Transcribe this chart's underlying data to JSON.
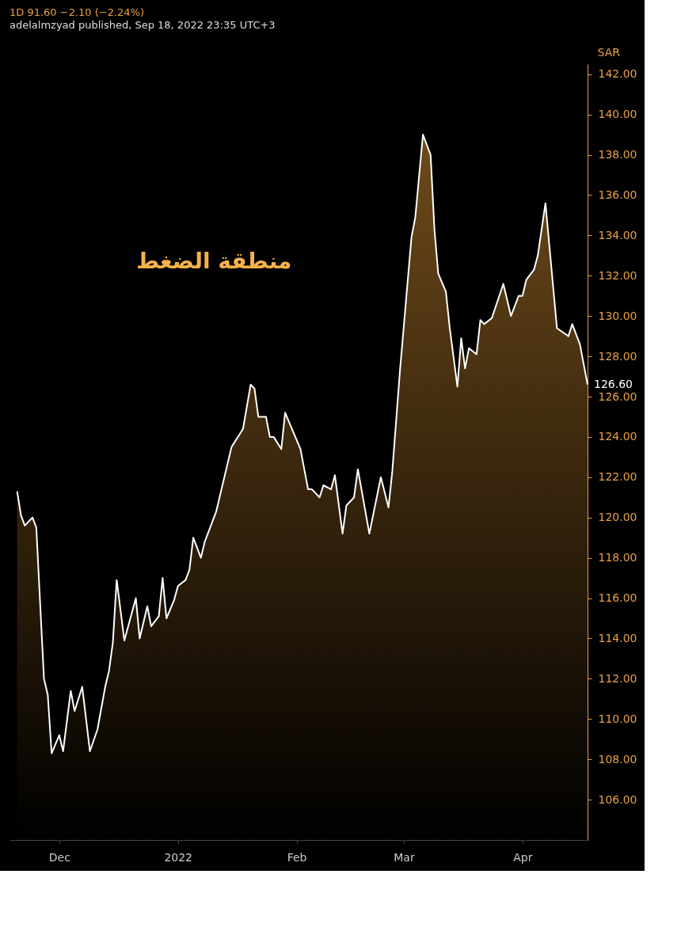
{
  "chart_data": {
    "type": "area",
    "title": "1D  91.60  −2.10 (−2.24%)",
    "subtitle": "adelalmzyad published, Sep 18, 2022 23:35 UTC+3",
    "ylabel": "SAR",
    "annotations": [
      "منطقة الضغط",
      {
        "text": "126.60",
        "x": "2022-04-18",
        "y": 126.6
      }
    ],
    "x": [
      "2021-11-20",
      "2021-11-21",
      "2021-11-22",
      "2021-11-24",
      "2021-11-25",
      "2021-11-27",
      "2021-11-28",
      "2021-11-29",
      "2021-12-01",
      "2021-12-02",
      "2021-12-04",
      "2021-12-05",
      "2021-12-07",
      "2021-12-09",
      "2021-12-11",
      "2021-12-13",
      "2021-12-14",
      "2021-12-15",
      "2021-12-16",
      "2021-12-18",
      "2021-12-21",
      "2021-12-22",
      "2021-12-24",
      "2021-12-25",
      "2021-12-27",
      "2021-12-28",
      "2021-12-29",
      "2021-12-31",
      "2022-01-01",
      "2022-01-03",
      "2022-01-04",
      "2022-01-05",
      "2022-01-07",
      "2022-01-08",
      "2022-01-11",
      "2022-01-15",
      "2022-01-18",
      "2022-01-20",
      "2022-01-21",
      "2022-01-22",
      "2022-01-24",
      "2022-01-25",
      "2022-01-26",
      "2022-01-28",
      "2022-01-29",
      "2022-02-02",
      "2022-02-04",
      "2022-02-05",
      "2022-02-07",
      "2022-02-08",
      "2022-02-10",
      "2022-02-11",
      "2022-02-13",
      "2022-02-14",
      "2022-02-16",
      "2022-02-17",
      "2022-02-20",
      "2022-02-23",
      "2022-02-25",
      "2022-02-26",
      "2022-02-28",
      "2022-03-03",
      "2022-03-04",
      "2022-03-06",
      "2022-03-08",
      "2022-03-09",
      "2022-03-10",
      "2022-03-12",
      "2022-03-13",
      "2022-03-15",
      "2022-03-16",
      "2022-03-17",
      "2022-03-18",
      "2022-03-20",
      "2022-03-21",
      "2022-03-22",
      "2022-03-24",
      "2022-03-27",
      "2022-03-29",
      "2022-03-31",
      "2022-04-01",
      "2022-04-02",
      "2022-04-04",
      "2022-04-05",
      "2022-04-07",
      "2022-04-10",
      "2022-04-13",
      "2022-04-14",
      "2022-04-16",
      "2022-04-18"
    ],
    "series": [
      {
        "color": "#ffffff",
        "values": [
          121.3,
          120.1,
          119.6,
          120.0,
          119.5,
          112.0,
          111.2,
          108.3,
          109.2,
          108.4,
          111.4,
          110.4,
          111.6,
          108.4,
          109.5,
          111.6,
          112.4,
          113.8,
          116.9,
          113.9,
          116.0,
          114.0,
          115.6,
          114.6,
          115.1,
          117.0,
          115.0,
          115.9,
          116.6,
          116.9,
          117.4,
          119.0,
          118.0,
          118.8,
          120.3,
          123.5,
          124.4,
          126.6,
          126.4,
          125.0,
          125.0,
          124.0,
          124.0,
          123.4,
          125.2,
          123.4,
          121.4,
          121.4,
          121.0,
          121.6,
          121.4,
          122.1,
          119.2,
          120.6,
          121.0,
          122.4,
          119.2,
          122.0,
          120.5,
          122.3,
          127.3,
          133.9,
          134.9,
          139.0,
          138.0,
          134.3,
          132.1,
          131.2,
          129.4,
          126.5,
          128.9,
          127.4,
          128.4,
          128.1,
          129.8,
          129.6,
          129.9,
          131.6,
          130.0,
          131.0,
          131.0,
          131.8,
          132.3,
          133.0,
          135.6,
          129.4,
          129.0,
          129.6,
          128.6,
          126.6
        ]
      }
    ],
    "xlim": [
      "2021-11-18",
      "2022-04-18"
    ],
    "xticks": [
      {
        "value": "2021-12-01",
        "label": "Dec"
      },
      {
        "value": "2022-01-01",
        "label": "2022"
      },
      {
        "value": "2022-02-01",
        "label": "Feb"
      },
      {
        "value": "2022-03-01",
        "label": "Mar"
      },
      {
        "value": "2022-04-01",
        "label": "Apr"
      }
    ],
    "ylim": [
      104,
      142.5
    ],
    "yticks": [
      {
        "value": 106,
        "label": "106.00"
      },
      {
        "value": 108,
        "label": "108.00"
      },
      {
        "value": 110,
        "label": "110.00"
      },
      {
        "value": 112,
        "label": "112.00"
      },
      {
        "value": 114,
        "label": "114.00"
      },
      {
        "value": 116,
        "label": "116.00"
      },
      {
        "value": 118,
        "label": "118.00"
      },
      {
        "value": 120,
        "label": "120.00"
      },
      {
        "value": 122,
        "label": "122.00"
      },
      {
        "value": 124,
        "label": "124.00"
      },
      {
        "value": 126,
        "label": "126.00"
      },
      {
        "value": 128,
        "label": "128.00"
      },
      {
        "value": 130,
        "label": "130.00"
      },
      {
        "value": 132,
        "label": "132.00"
      },
      {
        "value": 134,
        "label": "134.00"
      },
      {
        "value": 136,
        "label": "136.00"
      },
      {
        "value": 138,
        "label": "138.00"
      },
      {
        "value": 140,
        "label": "140.00"
      },
      {
        "value": 142,
        "label": "142.00"
      }
    ],
    "grid": false,
    "marker": "none",
    "line_style": "solid"
  }
}
